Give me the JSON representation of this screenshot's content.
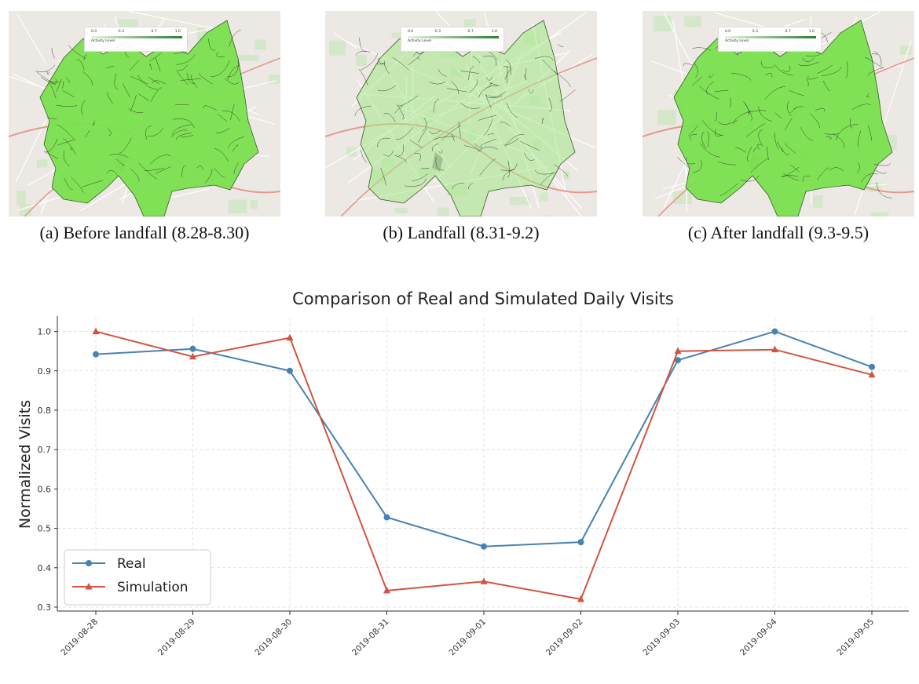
{
  "maps": [
    {
      "caption": "(a) Before landfall (8.28-8.30)",
      "activity": "high",
      "fill": "#7be04e",
      "opacity": 0.95
    },
    {
      "caption": "(b) Landfall (8.31-9.2)",
      "activity": "low",
      "fill": "#a6e88a",
      "opacity": 0.55
    },
    {
      "caption": "(c) After landfall (9.3-9.5)",
      "activity": "high",
      "fill": "#7be04e",
      "opacity": 0.95
    }
  ],
  "map_legend": {
    "title": "Activity Level",
    "ticks": [
      "0.0",
      "0.3",
      "0.7",
      "1.0"
    ]
  },
  "colors": {
    "real": "#4682b4",
    "simulation": "#d1553f",
    "map_base": "#ece8e3",
    "road": "#e39a8f",
    "grid": "#dddddd"
  },
  "chart_data": {
    "type": "line",
    "title": "Comparison of Real and Simulated Daily Visits",
    "xlabel": "",
    "ylabel": "Normalized Visits",
    "categories": [
      "2019-08-28",
      "2019-08-29",
      "2019-08-30",
      "2019-08-31",
      "2019-09-01",
      "2019-09-02",
      "2019-09-03",
      "2019-09-04",
      "2019-09-05"
    ],
    "ylim": [
      0.29,
      1.035
    ],
    "yticks": [
      "0.3",
      "0.4",
      "0.5",
      "0.6",
      "0.7",
      "0.8",
      "0.9",
      "1.0"
    ],
    "grid": true,
    "legend_position": "lower-left",
    "series": [
      {
        "name": "Real",
        "marker": "circle",
        "values": [
          0.942,
          0.956,
          0.9,
          0.528,
          0.454,
          0.465,
          0.927,
          1.0,
          0.91
        ]
      },
      {
        "name": "Simulation",
        "marker": "triangle",
        "values": [
          1.0,
          0.936,
          0.984,
          0.342,
          0.365,
          0.32,
          0.95,
          0.954,
          0.89
        ]
      }
    ]
  }
}
